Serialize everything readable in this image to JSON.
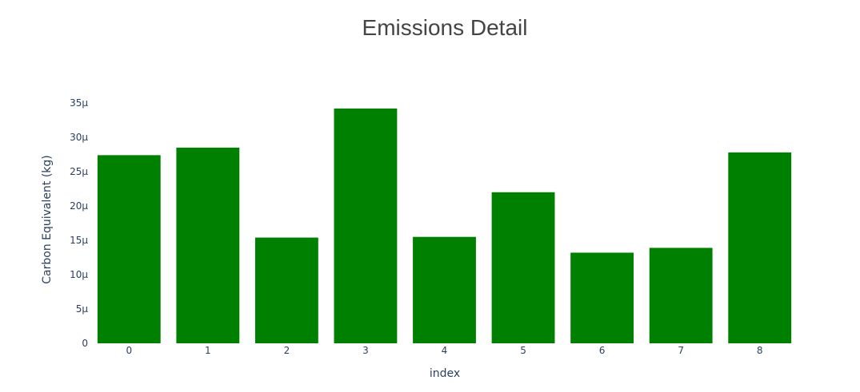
{
  "chart_data": {
    "type": "bar",
    "title": "Emissions Detail",
    "xlabel": "index",
    "ylabel": "Carbon Equivalent (kg)",
    "categories": [
      "0",
      "1",
      "2",
      "3",
      "4",
      "5",
      "6",
      "7",
      "8"
    ],
    "values": [
      2.74e-05,
      2.85e-05,
      1.54e-05,
      3.42e-05,
      1.55e-05,
      2.2e-05,
      1.32e-05,
      1.39e-05,
      2.78e-05
    ],
    "ylim": [
      0,
      3.5e-05
    ],
    "y_ticks": [
      0,
      5e-06,
      1e-05,
      1.5e-05,
      2e-05,
      2.5e-05,
      3e-05,
      3.5e-05
    ],
    "y_tick_labels": [
      "0",
      "5µ",
      "10µ",
      "15µ",
      "20µ",
      "25µ",
      "30µ",
      "35µ"
    ],
    "bar_color": "#008000",
    "grid": false,
    "legend": false
  }
}
